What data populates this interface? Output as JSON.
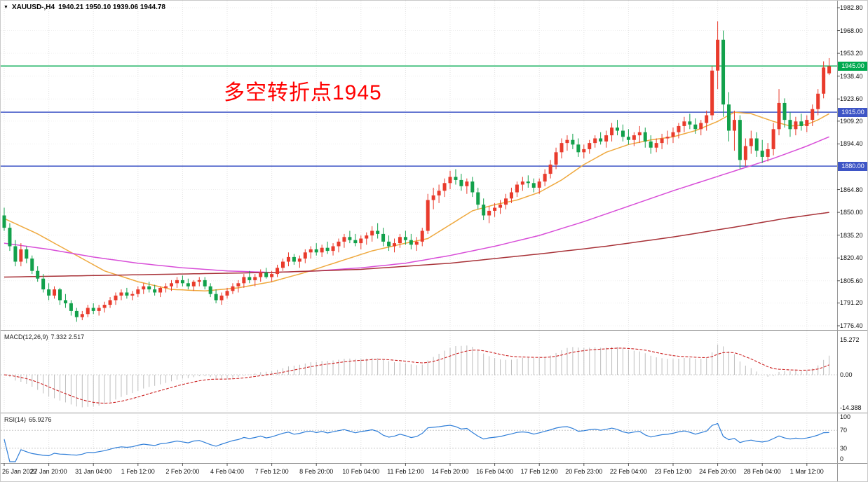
{
  "header": {
    "symbol_period": "XAUUSD-,H4",
    "ohlc": "1940.21 1950.10 1939.06 1944.78"
  },
  "annotation": {
    "text": "多空转折点1945",
    "color": "#ff0000"
  },
  "price_axis": {
    "ticks": [
      "1982.80",
      "1968.00",
      "1953.20",
      "1938.40",
      "1923.60",
      "1909.20",
      "1894.40",
      "1864.80",
      "1850.00",
      "1835.20",
      "1820.40",
      "1805.60",
      "1791.20",
      "1776.40"
    ],
    "badges": [
      {
        "label": "1945.00",
        "price": 1945,
        "color": "#00A94F"
      },
      {
        "label": "1915.00",
        "price": 1915,
        "color": "#3E55C6"
      },
      {
        "label": "1880.00",
        "price": 1880,
        "color": "#3E55C6"
      }
    ]
  },
  "time_axis": {
    "labels": [
      "26 Jan 2022",
      "27 Jan 20:00",
      "31 Jan 04:00",
      "1 Feb 12:00",
      "2 Feb 20:00",
      "4 Feb 04:00",
      "7 Feb 12:00",
      "8 Feb 20:00",
      "10 Feb 04:00",
      "11 Feb 12:00",
      "14 Feb 20:00",
      "16 Feb 04:00",
      "17 Feb 12:00",
      "20 Feb 23:00",
      "22 Feb 04:00",
      "23 Feb 12:00",
      "24 Feb 20:00",
      "28 Feb 04:00",
      "1 Mar 12:00"
    ]
  },
  "chart_data": {
    "type": "candlestick",
    "symbol": "XAUUSD",
    "timeframe": "H4",
    "y_range": [
      1776.4,
      1982.8
    ],
    "up_color": "#E93B2C",
    "down_color": "#12A14B",
    "hlines": [
      {
        "price": 1945,
        "color": "#00A94F"
      },
      {
        "price": 1915,
        "color": "#3E55C6"
      },
      {
        "price": 1880,
        "color": "#3E55C6"
      }
    ],
    "ohlc": [
      [
        1848,
        1853,
        1838,
        1840
      ],
      [
        1840,
        1843,
        1825,
        1828
      ],
      [
        1828,
        1832,
        1815,
        1818
      ],
      [
        1818,
        1830,
        1815,
        1826
      ],
      [
        1826,
        1828,
        1817,
        1820
      ],
      [
        1820,
        1822,
        1810,
        1812
      ],
      [
        1812,
        1815,
        1805,
        1807
      ],
      [
        1807,
        1810,
        1798,
        1800
      ],
      [
        1800,
        1804,
        1793,
        1796
      ],
      [
        1796,
        1802,
        1794,
        1800
      ],
      [
        1800,
        1801,
        1790,
        1793
      ],
      [
        1793,
        1797,
        1788,
        1791
      ],
      [
        1791,
        1793,
        1783,
        1786
      ],
      [
        1786,
        1788,
        1779,
        1782
      ],
      [
        1782,
        1786,
        1780,
        1784
      ],
      [
        1784,
        1790,
        1782,
        1788
      ],
      [
        1788,
        1791,
        1784,
        1786
      ],
      [
        1786,
        1790,
        1783,
        1788
      ],
      [
        1788,
        1792,
        1785,
        1790
      ],
      [
        1790,
        1795,
        1788,
        1793
      ],
      [
        1793,
        1798,
        1790,
        1796
      ],
      [
        1796,
        1800,
        1793,
        1798
      ],
      [
        1798,
        1801,
        1794,
        1796
      ],
      [
        1796,
        1799,
        1793,
        1797
      ],
      [
        1797,
        1802,
        1795,
        1800
      ],
      [
        1800,
        1804,
        1797,
        1802
      ],
      [
        1802,
        1805,
        1798,
        1800
      ],
      [
        1800,
        1803,
        1796,
        1798
      ],
      [
        1798,
        1802,
        1795,
        1801
      ],
      [
        1801,
        1804,
        1798,
        1802
      ],
      [
        1802,
        1806,
        1799,
        1804
      ],
      [
        1804,
        1808,
        1801,
        1806
      ],
      [
        1806,
        1809,
        1802,
        1804
      ],
      [
        1804,
        1807,
        1800,
        1802
      ],
      [
        1802,
        1806,
        1799,
        1805
      ],
      [
        1805,
        1808,
        1802,
        1806
      ],
      [
        1806,
        1808,
        1800,
        1802
      ],
      [
        1802,
        1804,
        1795,
        1797
      ],
      [
        1797,
        1800,
        1791,
        1793
      ],
      [
        1793,
        1798,
        1790,
        1796
      ],
      [
        1796,
        1801,
        1794,
        1799
      ],
      [
        1799,
        1804,
        1797,
        1802
      ],
      [
        1802,
        1806,
        1798,
        1804
      ],
      [
        1804,
        1810,
        1801,
        1808
      ],
      [
        1808,
        1812,
        1804,
        1806
      ],
      [
        1806,
        1810,
        1802,
        1808
      ],
      [
        1808,
        1813,
        1805,
        1811
      ],
      [
        1811,
        1814,
        1807,
        1808
      ],
      [
        1808,
        1812,
        1805,
        1810
      ],
      [
        1810,
        1816,
        1808,
        1814
      ],
      [
        1814,
        1820,
        1812,
        1818
      ],
      [
        1818,
        1824,
        1815,
        1821
      ],
      [
        1821,
        1823,
        1816,
        1818
      ],
      [
        1818,
        1822,
        1814,
        1820
      ],
      [
        1820,
        1826,
        1817,
        1824
      ],
      [
        1824,
        1828,
        1820,
        1826
      ],
      [
        1826,
        1830,
        1822,
        1824
      ],
      [
        1824,
        1829,
        1821,
        1827
      ],
      [
        1827,
        1831,
        1823,
        1825
      ],
      [
        1825,
        1830,
        1822,
        1828
      ],
      [
        1828,
        1833,
        1824,
        1831
      ],
      [
        1831,
        1836,
        1827,
        1834
      ],
      [
        1834,
        1838,
        1830,
        1832
      ],
      [
        1832,
        1836,
        1828,
        1830
      ],
      [
        1830,
        1835,
        1826,
        1833
      ],
      [
        1833,
        1837,
        1829,
        1835
      ],
      [
        1835,
        1841,
        1831,
        1838
      ],
      [
        1838,
        1843,
        1833,
        1836
      ],
      [
        1836,
        1840,
        1828,
        1831
      ],
      [
        1831,
        1835,
        1825,
        1828
      ],
      [
        1828,
        1833,
        1824,
        1830
      ],
      [
        1830,
        1836,
        1827,
        1834
      ],
      [
        1834,
        1838,
        1829,
        1832
      ],
      [
        1832,
        1836,
        1826,
        1829
      ],
      [
        1829,
        1834,
        1825,
        1831
      ],
      [
        1831,
        1840,
        1828,
        1838
      ],
      [
        1838,
        1862,
        1836,
        1858
      ],
      [
        1858,
        1866,
        1852,
        1861
      ],
      [
        1861,
        1868,
        1856,
        1864
      ],
      [
        1864,
        1872,
        1860,
        1869
      ],
      [
        1869,
        1877,
        1865,
        1873
      ],
      [
        1873,
        1878,
        1868,
        1871
      ],
      [
        1871,
        1875,
        1864,
        1867
      ],
      [
        1867,
        1872,
        1862,
        1870
      ],
      [
        1870,
        1873,
        1860,
        1863
      ],
      [
        1863,
        1866,
        1852,
        1855
      ],
      [
        1855,
        1859,
        1845,
        1848
      ],
      [
        1848,
        1854,
        1843,
        1851
      ],
      [
        1851,
        1856,
        1847,
        1853
      ],
      [
        1853,
        1858,
        1849,
        1855
      ],
      [
        1855,
        1862,
        1852,
        1859
      ],
      [
        1859,
        1866,
        1856,
        1863
      ],
      [
        1863,
        1870,
        1860,
        1868
      ],
      [
        1868,
        1873,
        1864,
        1870
      ],
      [
        1870,
        1874,
        1866,
        1869
      ],
      [
        1869,
        1872,
        1863,
        1866
      ],
      [
        1866,
        1872,
        1862,
        1870
      ],
      [
        1870,
        1878,
        1867,
        1875
      ],
      [
        1875,
        1884,
        1872,
        1881
      ],
      [
        1881,
        1892,
        1878,
        1889
      ],
      [
        1889,
        1898,
        1885,
        1895
      ],
      [
        1895,
        1900,
        1890,
        1897
      ],
      [
        1897,
        1901,
        1891,
        1894
      ],
      [
        1894,
        1898,
        1886,
        1889
      ],
      [
        1889,
        1894,
        1885,
        1891
      ],
      [
        1891,
        1897,
        1888,
        1895
      ],
      [
        1895,
        1900,
        1892,
        1898
      ],
      [
        1898,
        1902,
        1894,
        1896
      ],
      [
        1896,
        1903,
        1892,
        1900
      ],
      [
        1900,
        1908,
        1896,
        1905
      ],
      [
        1905,
        1910,
        1900,
        1903
      ],
      [
        1903,
        1907,
        1896,
        1899
      ],
      [
        1899,
        1904,
        1894,
        1897
      ],
      [
        1897,
        1902,
        1893,
        1900
      ],
      [
        1900,
        1906,
        1895,
        1902
      ],
      [
        1902,
        1905,
        1892,
        1896
      ],
      [
        1896,
        1900,
        1888,
        1892
      ],
      [
        1892,
        1898,
        1889,
        1895
      ],
      [
        1895,
        1901,
        1891,
        1898
      ],
      [
        1898,
        1903,
        1894,
        1899
      ],
      [
        1899,
        1905,
        1895,
        1902
      ],
      [
        1902,
        1908,
        1898,
        1906
      ],
      [
        1906,
        1912,
        1902,
        1909
      ],
      [
        1909,
        1914,
        1904,
        1907
      ],
      [
        1907,
        1911,
        1901,
        1904
      ],
      [
        1904,
        1910,
        1900,
        1908
      ],
      [
        1908,
        1916,
        1903,
        1913
      ],
      [
        1913,
        1945,
        1910,
        1942
      ],
      [
        1942,
        1974,
        1930,
        1962
      ],
      [
        1962,
        1968,
        1912,
        1920
      ],
      [
        1920,
        1928,
        1896,
        1903
      ],
      [
        1903,
        1916,
        1890,
        1910
      ],
      [
        1910,
        1913,
        1878,
        1884
      ],
      [
        1884,
        1898,
        1880,
        1893
      ],
      [
        1893,
        1903,
        1888,
        1898
      ],
      [
        1898,
        1902,
        1886,
        1890
      ],
      [
        1890,
        1897,
        1882,
        1886
      ],
      [
        1886,
        1895,
        1883,
        1891
      ],
      [
        1891,
        1908,
        1887,
        1904
      ],
      [
        1904,
        1930,
        1900,
        1921
      ],
      [
        1921,
        1924,
        1905,
        1910
      ],
      [
        1910,
        1915,
        1899,
        1904
      ],
      [
        1904,
        1912,
        1900,
        1909
      ],
      [
        1909,
        1914,
        1903,
        1906
      ],
      [
        1906,
        1913,
        1902,
        1910
      ],
      [
        1910,
        1920,
        1906,
        1917
      ],
      [
        1917,
        1930,
        1913,
        1927
      ],
      [
        1927,
        1948,
        1924,
        1944
      ],
      [
        1940.2,
        1950.1,
        1939.1,
        1944.8
      ]
    ],
    "moving_averages": [
      {
        "name": "ma-fast-orange",
        "color": "#EFA93F",
        "points": [
          [
            0,
            1846
          ],
          [
            6,
            1836
          ],
          [
            12,
            1824
          ],
          [
            18,
            1812
          ],
          [
            24,
            1805
          ],
          [
            30,
            1800
          ],
          [
            36,
            1799
          ],
          [
            42,
            1801
          ],
          [
            48,
            1805
          ],
          [
            54,
            1811
          ],
          [
            60,
            1818
          ],
          [
            66,
            1825
          ],
          [
            72,
            1830
          ],
          [
            76,
            1833
          ],
          [
            80,
            1842
          ],
          [
            84,
            1851
          ],
          [
            88,
            1855
          ],
          [
            92,
            1858
          ],
          [
            96,
            1863
          ],
          [
            100,
            1871
          ],
          [
            104,
            1881
          ],
          [
            108,
            1889
          ],
          [
            112,
            1894
          ],
          [
            116,
            1897
          ],
          [
            120,
            1899
          ],
          [
            124,
            1903
          ],
          [
            128,
            1909
          ],
          [
            131,
            1915
          ],
          [
            134,
            1914
          ],
          [
            138,
            1909
          ],
          [
            141,
            1906
          ],
          [
            144,
            1907
          ],
          [
            146,
            1910
          ],
          [
            148,
            1914
          ]
        ]
      },
      {
        "name": "ma-mid-magenta",
        "color": "#D84ED8",
        "points": [
          [
            0,
            1830
          ],
          [
            8,
            1826
          ],
          [
            16,
            1821
          ],
          [
            24,
            1817
          ],
          [
            32,
            1814
          ],
          [
            40,
            1812
          ],
          [
            48,
            1811
          ],
          [
            56,
            1812
          ],
          [
            64,
            1814
          ],
          [
            72,
            1817
          ],
          [
            80,
            1822
          ],
          [
            88,
            1828
          ],
          [
            96,
            1835
          ],
          [
            104,
            1844
          ],
          [
            112,
            1854
          ],
          [
            120,
            1864
          ],
          [
            126,
            1871
          ],
          [
            132,
            1878
          ],
          [
            138,
            1885
          ],
          [
            144,
            1893
          ],
          [
            148,
            1899
          ]
        ]
      },
      {
        "name": "ma-slow-darkred",
        "color": "#A83238",
        "points": [
          [
            0,
            1808
          ],
          [
            16,
            1809
          ],
          [
            32,
            1810
          ],
          [
            48,
            1811
          ],
          [
            64,
            1813
          ],
          [
            80,
            1817
          ],
          [
            96,
            1823
          ],
          [
            108,
            1828
          ],
          [
            120,
            1834
          ],
          [
            132,
            1841
          ],
          [
            140,
            1846
          ],
          [
            148,
            1850
          ]
        ]
      }
    ],
    "indicators": {
      "macd": {
        "label": "MACD(12,26,9)",
        "values": "7.332 2.517",
        "scale_labels": [
          15.272,
          0.0,
          -14.388
        ],
        "params": [
          12,
          26,
          9
        ],
        "histogram_color": "#BDBDBD",
        "signal_color": "#CC2222"
      },
      "rsi": {
        "label": "RSI(14)",
        "value": "65.9276",
        "levels": [
          100,
          70,
          30,
          0
        ],
        "period": 14,
        "line_color": "#2F7ED8"
      }
    }
  }
}
